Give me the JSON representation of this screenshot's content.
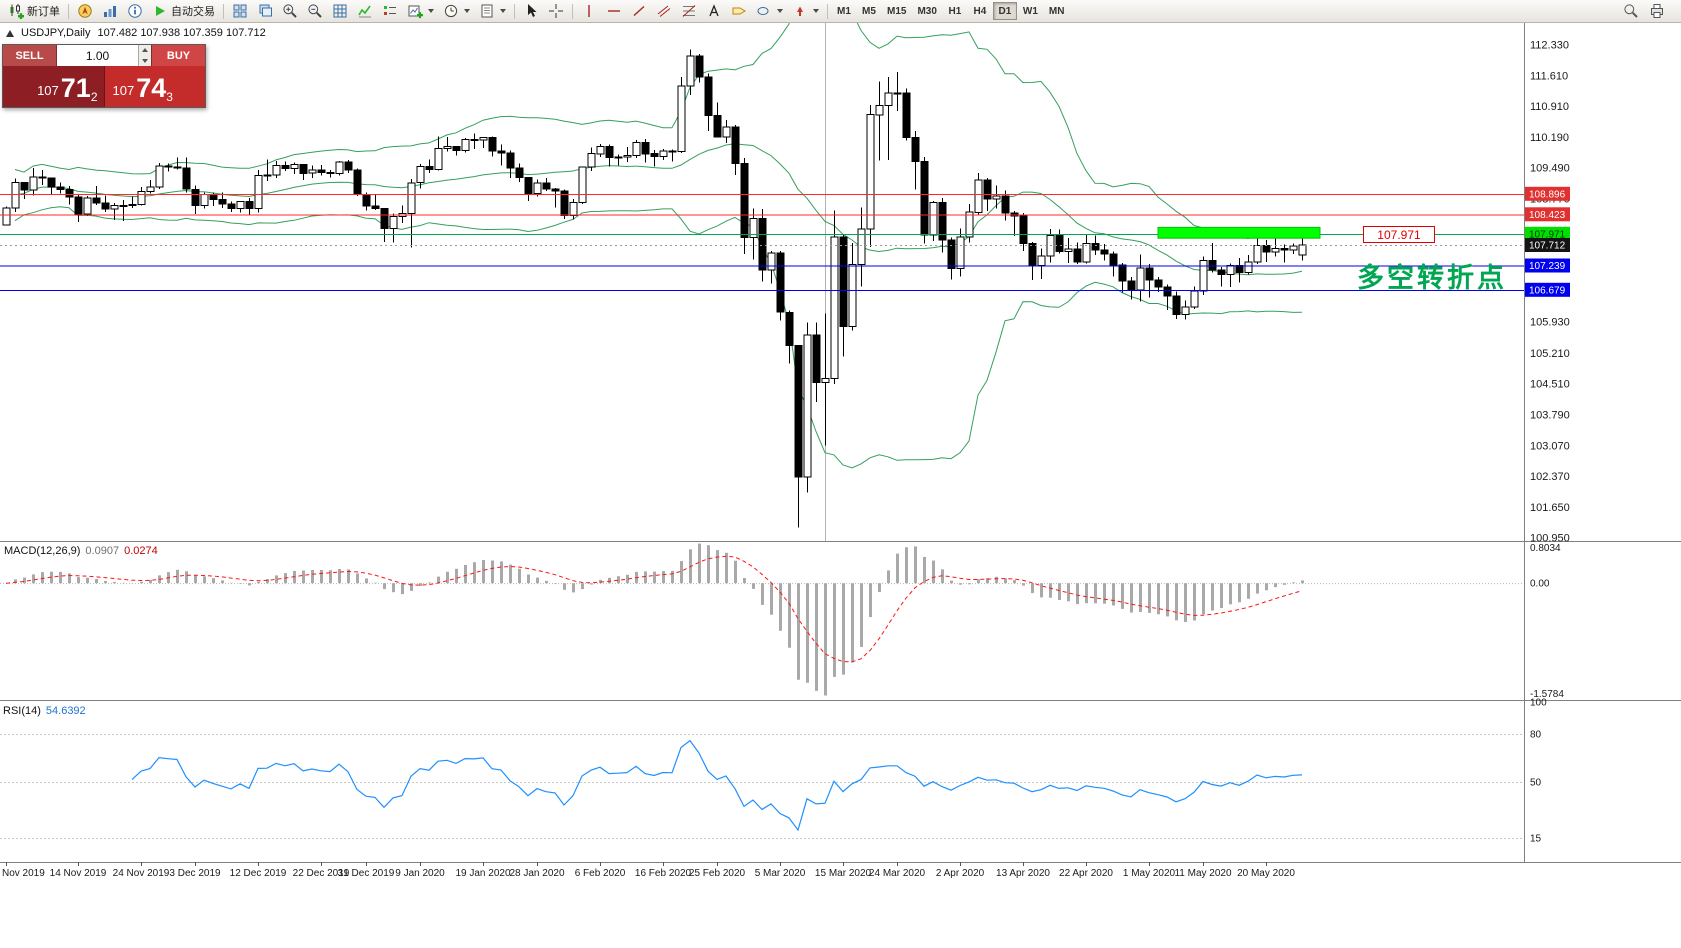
{
  "theme": {
    "bollinger": "#35a05c",
    "macd_hist": "#a9a9a9",
    "macd_signal": "#ff1414",
    "rsi_line": "#1e90ff",
    "candle_up": "#ffffff",
    "candle_down": "#000000",
    "red_line": "#ff2a2a",
    "blue_line": "#0000ee",
    "green_line": "#00a651",
    "lime": "#00ff00"
  },
  "toolbar": {
    "new_order_label": "新订单",
    "autotrading_label": "自动交易",
    "timeframes": [
      "M1",
      "M5",
      "M15",
      "M30",
      "H1",
      "H4",
      "D1",
      "W1",
      "MN"
    ],
    "active_timeframe": "D1"
  },
  "trade_panel": {
    "sell_label": "SELL",
    "buy_label": "BUY",
    "volume": "1.00",
    "bid": {
      "prefix": "107",
      "big": "71",
      "sup": "2"
    },
    "ask": {
      "prefix": "107",
      "big": "74",
      "sup": "3"
    }
  },
  "chart": {
    "symbol_period": "USDJPY,Daily",
    "ohlc": "107.482 107.938 107.359 107.712"
  },
  "indicators": {
    "macd_label": "MACD(12,26,9)",
    "macd_value1": "0.0907",
    "macd_value2": "0.0274",
    "rsi_label": "RSI(14)",
    "rsi_value": "54.6392"
  },
  "annotations": {
    "level_label": "107.971",
    "note_text": "多空转折点"
  },
  "chart_data": {
    "type": "candlestick",
    "symbol": "USDJPY",
    "timeframe": "Daily",
    "current_bar": {
      "open": 107.482,
      "high": 107.938,
      "low": 107.359,
      "close": 107.712
    },
    "price_axis_ticks": [
      "112.330",
      "111.610",
      "110.910",
      "110.190",
      "109.490",
      "108.770",
      "105.930",
      "105.210",
      "104.510",
      "103.790",
      "103.070",
      "102.370",
      "101.650",
      "100.950"
    ],
    "candles": [
      [
        108.18,
        108.6,
        108.16,
        108.57
      ],
      [
        108.57,
        109.25,
        108.47,
        109.16
      ],
      [
        109.16,
        109.17,
        108.78,
        108.98
      ],
      [
        108.98,
        109.49,
        108.86,
        109.28
      ],
      [
        109.28,
        109.44,
        109.1,
        109.26
      ],
      [
        109.26,
        109.27,
        108.89,
        109.05
      ],
      [
        109.05,
        109.16,
        108.9,
        109.0
      ],
      [
        109.0,
        109.08,
        108.65,
        108.82
      ],
      [
        108.82,
        108.87,
        108.24,
        108.43
      ],
      [
        108.43,
        108.85,
        108.38,
        108.8
      ],
      [
        108.8,
        109.07,
        108.64,
        108.68
      ],
      [
        108.68,
        108.86,
        108.47,
        108.54
      ],
      [
        108.54,
        108.68,
        108.29,
        108.62
      ],
      [
        108.62,
        108.75,
        108.27,
        108.63
      ],
      [
        108.63,
        108.83,
        108.57,
        108.65
      ],
      [
        108.65,
        109.05,
        108.63,
        108.95
      ],
      [
        108.95,
        109.21,
        108.9,
        109.05
      ],
      [
        109.05,
        109.61,
        109.01,
        109.54
      ],
      [
        109.54,
        109.6,
        109.41,
        109.51
      ],
      [
        109.51,
        109.73,
        109.46,
        109.49
      ],
      [
        109.49,
        109.73,
        108.92,
        109.0
      ],
      [
        109.0,
        109.09,
        108.43,
        108.63
      ],
      [
        108.63,
        108.93,
        108.55,
        108.88
      ],
      [
        108.88,
        108.92,
        108.61,
        108.76
      ],
      [
        108.76,
        108.92,
        108.57,
        108.66
      ],
      [
        108.66,
        108.72,
        108.47,
        108.56
      ],
      [
        108.56,
        108.73,
        108.46,
        108.72
      ],
      [
        108.72,
        108.8,
        108.42,
        108.56
      ],
      [
        108.56,
        109.45,
        108.46,
        109.32
      ],
      [
        109.32,
        109.69,
        109.19,
        109.33
      ],
      [
        109.33,
        109.65,
        109.26,
        109.55
      ],
      [
        109.55,
        109.64,
        109.42,
        109.48
      ],
      [
        109.48,
        109.62,
        109.35,
        109.57
      ],
      [
        109.57,
        109.58,
        109.21,
        109.37
      ],
      [
        109.37,
        109.55,
        109.26,
        109.44
      ],
      [
        109.44,
        109.56,
        109.32,
        109.39
      ],
      [
        109.39,
        109.45,
        109.27,
        109.37
      ],
      [
        109.37,
        109.65,
        109.32,
        109.63
      ],
      [
        109.63,
        109.67,
        109.38,
        109.44
      ],
      [
        109.44,
        109.48,
        108.85,
        108.88
      ],
      [
        108.88,
        108.93,
        108.51,
        108.61
      ],
      [
        108.61,
        108.87,
        108.52,
        108.56
      ],
      [
        108.56,
        108.57,
        107.78,
        108.09
      ],
      [
        108.09,
        108.44,
        107.77,
        108.37
      ],
      [
        108.37,
        108.62,
        108.22,
        108.44
      ],
      [
        108.44,
        109.24,
        107.65,
        109.15
      ],
      [
        109.15,
        109.58,
        109.02,
        109.52
      ],
      [
        109.52,
        109.69,
        109.38,
        109.46
      ],
      [
        109.46,
        110.22,
        109.43,
        109.94
      ],
      [
        109.94,
        110.21,
        109.87,
        109.99
      ],
      [
        109.99,
        110.0,
        109.78,
        109.89
      ],
      [
        109.89,
        110.18,
        109.85,
        110.15
      ],
      [
        110.15,
        110.29,
        109.93,
        110.14
      ],
      [
        110.14,
        110.21,
        109.95,
        110.19
      ],
      [
        110.19,
        110.22,
        109.76,
        109.88
      ],
      [
        109.88,
        110.03,
        109.55,
        109.84
      ],
      [
        109.84,
        109.89,
        109.26,
        109.49
      ],
      [
        109.49,
        109.6,
        109.17,
        109.27
      ],
      [
        109.27,
        109.28,
        108.73,
        108.9
      ],
      [
        108.9,
        109.23,
        108.83,
        109.14
      ],
      [
        109.14,
        109.26,
        108.96,
        109.01
      ],
      [
        109.01,
        109.03,
        108.58,
        108.96
      ],
      [
        108.96,
        109.0,
        108.31,
        108.39
      ],
      [
        108.39,
        108.78,
        108.3,
        108.69
      ],
      [
        108.69,
        109.53,
        108.66,
        109.51
      ],
      [
        109.51,
        109.96,
        109.42,
        109.82
      ],
      [
        109.82,
        110.04,
        109.74,
        109.99
      ],
      [
        109.99,
        110.03,
        109.53,
        109.73
      ],
      [
        109.73,
        109.8,
        109.55,
        109.75
      ],
      [
        109.75,
        109.98,
        109.63,
        109.78
      ],
      [
        109.78,
        110.14,
        109.72,
        110.08
      ],
      [
        110.08,
        110.16,
        109.62,
        109.82
      ],
      [
        109.82,
        109.91,
        109.53,
        109.75
      ],
      [
        109.75,
        109.93,
        109.67,
        109.88
      ],
      [
        109.88,
        109.92,
        109.64,
        109.87
      ],
      [
        109.87,
        111.59,
        109.84,
        111.38
      ],
      [
        111.38,
        112.23,
        111.18,
        112.08
      ],
      [
        112.08,
        112.12,
        111.46,
        111.59
      ],
      [
        111.59,
        111.67,
        110.34,
        110.7
      ],
      [
        110.7,
        111.0,
        110.19,
        110.21
      ],
      [
        110.21,
        110.6,
        110.07,
        110.44
      ],
      [
        110.44,
        110.48,
        109.33,
        109.59
      ],
      [
        109.59,
        109.72,
        107.51,
        107.89
      ],
      [
        107.89,
        108.56,
        107.38,
        108.32
      ],
      [
        108.32,
        108.54,
        106.87,
        107.14
      ],
      [
        107.14,
        107.57,
        106.83,
        107.53
      ],
      [
        107.53,
        107.58,
        105.97,
        106.16
      ],
      [
        106.16,
        106.2,
        104.98,
        105.39
      ],
      [
        105.39,
        105.4,
        101.19,
        102.36
      ],
      [
        102.36,
        105.92,
        102.0,
        105.64
      ],
      [
        105.64,
        105.92,
        104.09,
        104.54
      ],
      [
        104.54,
        106.13,
        103.08,
        104.63
      ],
      [
        104.63,
        108.51,
        104.5,
        107.9
      ],
      [
        107.9,
        107.96,
        105.14,
        105.83
      ],
      [
        105.83,
        107.76,
        105.74,
        107.26
      ],
      [
        107.26,
        108.58,
        106.75,
        108.08
      ],
      [
        108.08,
        110.95,
        107.67,
        110.72
      ],
      [
        110.72,
        111.49,
        109.66,
        110.93
      ],
      [
        110.93,
        111.59,
        109.67,
        111.22
      ],
      [
        111.22,
        111.71,
        110.81,
        111.22
      ],
      [
        111.22,
        111.33,
        110.12,
        110.2
      ],
      [
        110.2,
        110.35,
        108.99,
        109.64
      ],
      [
        109.64,
        109.74,
        107.75,
        107.94
      ],
      [
        107.94,
        108.73,
        107.81,
        108.7
      ],
      [
        108.7,
        108.8,
        107.54,
        107.83
      ],
      [
        107.83,
        107.89,
        106.92,
        107.17
      ],
      [
        107.17,
        108.09,
        106.99,
        107.9
      ],
      [
        107.9,
        108.66,
        107.77,
        108.47
      ],
      [
        108.47,
        109.38,
        108.42,
        109.21
      ],
      [
        109.21,
        109.26,
        108.5,
        108.78
      ],
      [
        108.78,
        109.09,
        108.55,
        108.84
      ],
      [
        108.84,
        108.97,
        108.28,
        108.45
      ],
      [
        108.45,
        108.5,
        107.92,
        108.38
      ],
      [
        108.38,
        108.45,
        107.58,
        107.75
      ],
      [
        107.75,
        107.78,
        106.91,
        107.24
      ],
      [
        107.24,
        107.63,
        106.93,
        107.46
      ],
      [
        107.46,
        108.08,
        107.31,
        107.93
      ],
      [
        107.93,
        108.07,
        107.52,
        107.56
      ],
      [
        107.56,
        107.87,
        107.3,
        107.62
      ],
      [
        107.62,
        107.77,
        107.27,
        107.32
      ],
      [
        107.32,
        107.96,
        107.29,
        107.75
      ],
      [
        107.75,
        107.93,
        107.48,
        107.6
      ],
      [
        107.6,
        107.74,
        107.36,
        107.5
      ],
      [
        107.5,
        107.56,
        106.99,
        107.25
      ],
      [
        107.25,
        107.3,
        106.62,
        106.88
      ],
      [
        106.88,
        106.98,
        106.46,
        106.68
      ],
      [
        106.68,
        107.49,
        106.41,
        107.18
      ],
      [
        107.18,
        107.27,
        106.5,
        106.91
      ],
      [
        106.91,
        106.98,
        106.63,
        106.74
      ],
      [
        106.74,
        106.8,
        106.21,
        106.54
      ],
      [
        106.54,
        106.64,
        106.0,
        106.11
      ],
      [
        106.11,
        106.43,
        105.99,
        106.28
      ],
      [
        106.28,
        106.76,
        106.23,
        106.65
      ],
      [
        106.65,
        107.45,
        106.56,
        107.35
      ],
      [
        107.35,
        107.76,
        107.08,
        107.14
      ],
      [
        107.14,
        107.2,
        106.75,
        107.03
      ],
      [
        107.03,
        107.29,
        106.74,
        107.24
      ],
      [
        107.24,
        107.41,
        106.85,
        107.08
      ],
      [
        107.08,
        107.48,
        107.03,
        107.32
      ],
      [
        107.32,
        108.08,
        107.27,
        107.7
      ],
      [
        107.7,
        107.83,
        107.32,
        107.55
      ],
      [
        107.55,
        107.91,
        107.45,
        107.63
      ],
      [
        107.63,
        107.73,
        107.31,
        107.6
      ],
      [
        107.6,
        107.75,
        107.51,
        107.69
      ],
      [
        107.482,
        107.938,
        107.359,
        107.712
      ]
    ],
    "date_labels": [
      {
        "label": "Nov 2019",
        "index": 0
      },
      {
        "label": "14 Nov 2019",
        "index": 8
      },
      {
        "label": "24 Nov 2019",
        "index": 15
      },
      {
        "label": "3 Dec 2019",
        "index": 21
      },
      {
        "label": "12 Dec 2019",
        "index": 28
      },
      {
        "label": "22 Dec 2019",
        "index": 35
      },
      {
        "label": "31 Dec 2019",
        "index": 40
      },
      {
        "label": "9 Jan 2020",
        "index": 46
      },
      {
        "label": "19 Jan 2020",
        "index": 53
      },
      {
        "label": "28 Jan 2020",
        "index": 59
      },
      {
        "label": "6 Feb 2020",
        "index": 66
      },
      {
        "label": "16 Feb 2020",
        "index": 73
      },
      {
        "label": "25 Feb 2020",
        "index": 79
      },
      {
        "label": "5 Mar 2020",
        "index": 86
      },
      {
        "label": "15 Mar 2020",
        "index": 93
      },
      {
        "label": "24 Mar 2020",
        "index": 99
      },
      {
        "label": "2 Apr 2020",
        "index": 106
      },
      {
        "label": "13 Apr 2020",
        "index": 113
      },
      {
        "label": "22 Apr 2020",
        "index": 120
      },
      {
        "label": "1 May 2020",
        "index": 127
      },
      {
        "label": "11 May 2020",
        "index": 133
      },
      {
        "label": "20 May 2020",
        "index": 140
      }
    ],
    "hlines": [
      {
        "price": 108.896,
        "color": "#ff2a2a"
      },
      {
        "price": 108.423,
        "color": "#ff2a2a"
      },
      {
        "price": 107.971,
        "color": "#00a651"
      },
      {
        "price": 107.239,
        "color": "#0000ee"
      },
      {
        "price": 106.679,
        "color": "#0000ee"
      }
    ],
    "price_tags": [
      {
        "label": "108.896",
        "price": 108.896,
        "bg": "#e03030",
        "fg": "#ffffff"
      },
      {
        "label": "108.423",
        "price": 108.423,
        "bg": "#e03030",
        "fg": "#ffffff"
      },
      {
        "label": "107.971",
        "price": 107.971,
        "bg": "#00e000",
        "fg": "#003300"
      },
      {
        "label": "107.712",
        "price": 107.712,
        "bg": "#141414",
        "fg": "#ffffff"
      },
      {
        "label": "107.239",
        "price": 107.239,
        "bg": "#0000ee",
        "fg": "#ffffff"
      },
      {
        "label": "106.679",
        "price": 106.679,
        "bg": "#0000ee",
        "fg": "#ffffff"
      }
    ],
    "rectangle": {
      "from_index": 128,
      "to_index": 146,
      "price_top": 108.12,
      "price_bottom": 107.87,
      "color": "#00ff00"
    },
    "vline_index": 91,
    "current_price": 107.712,
    "bollinger": {
      "period": 20,
      "deviation": 2
    },
    "macd": {
      "fast": 12,
      "slow": 26,
      "signal": 9,
      "values": [
        0.0907,
        0.0274
      ],
      "axis": [
        "0.8034",
        "0.00",
        "-1.5784"
      ]
    },
    "rsi": {
      "period": 14,
      "value": 54.6392,
      "levels": [
        80,
        50,
        15
      ],
      "axis": [
        "100",
        "80",
        "50",
        "15"
      ]
    }
  }
}
